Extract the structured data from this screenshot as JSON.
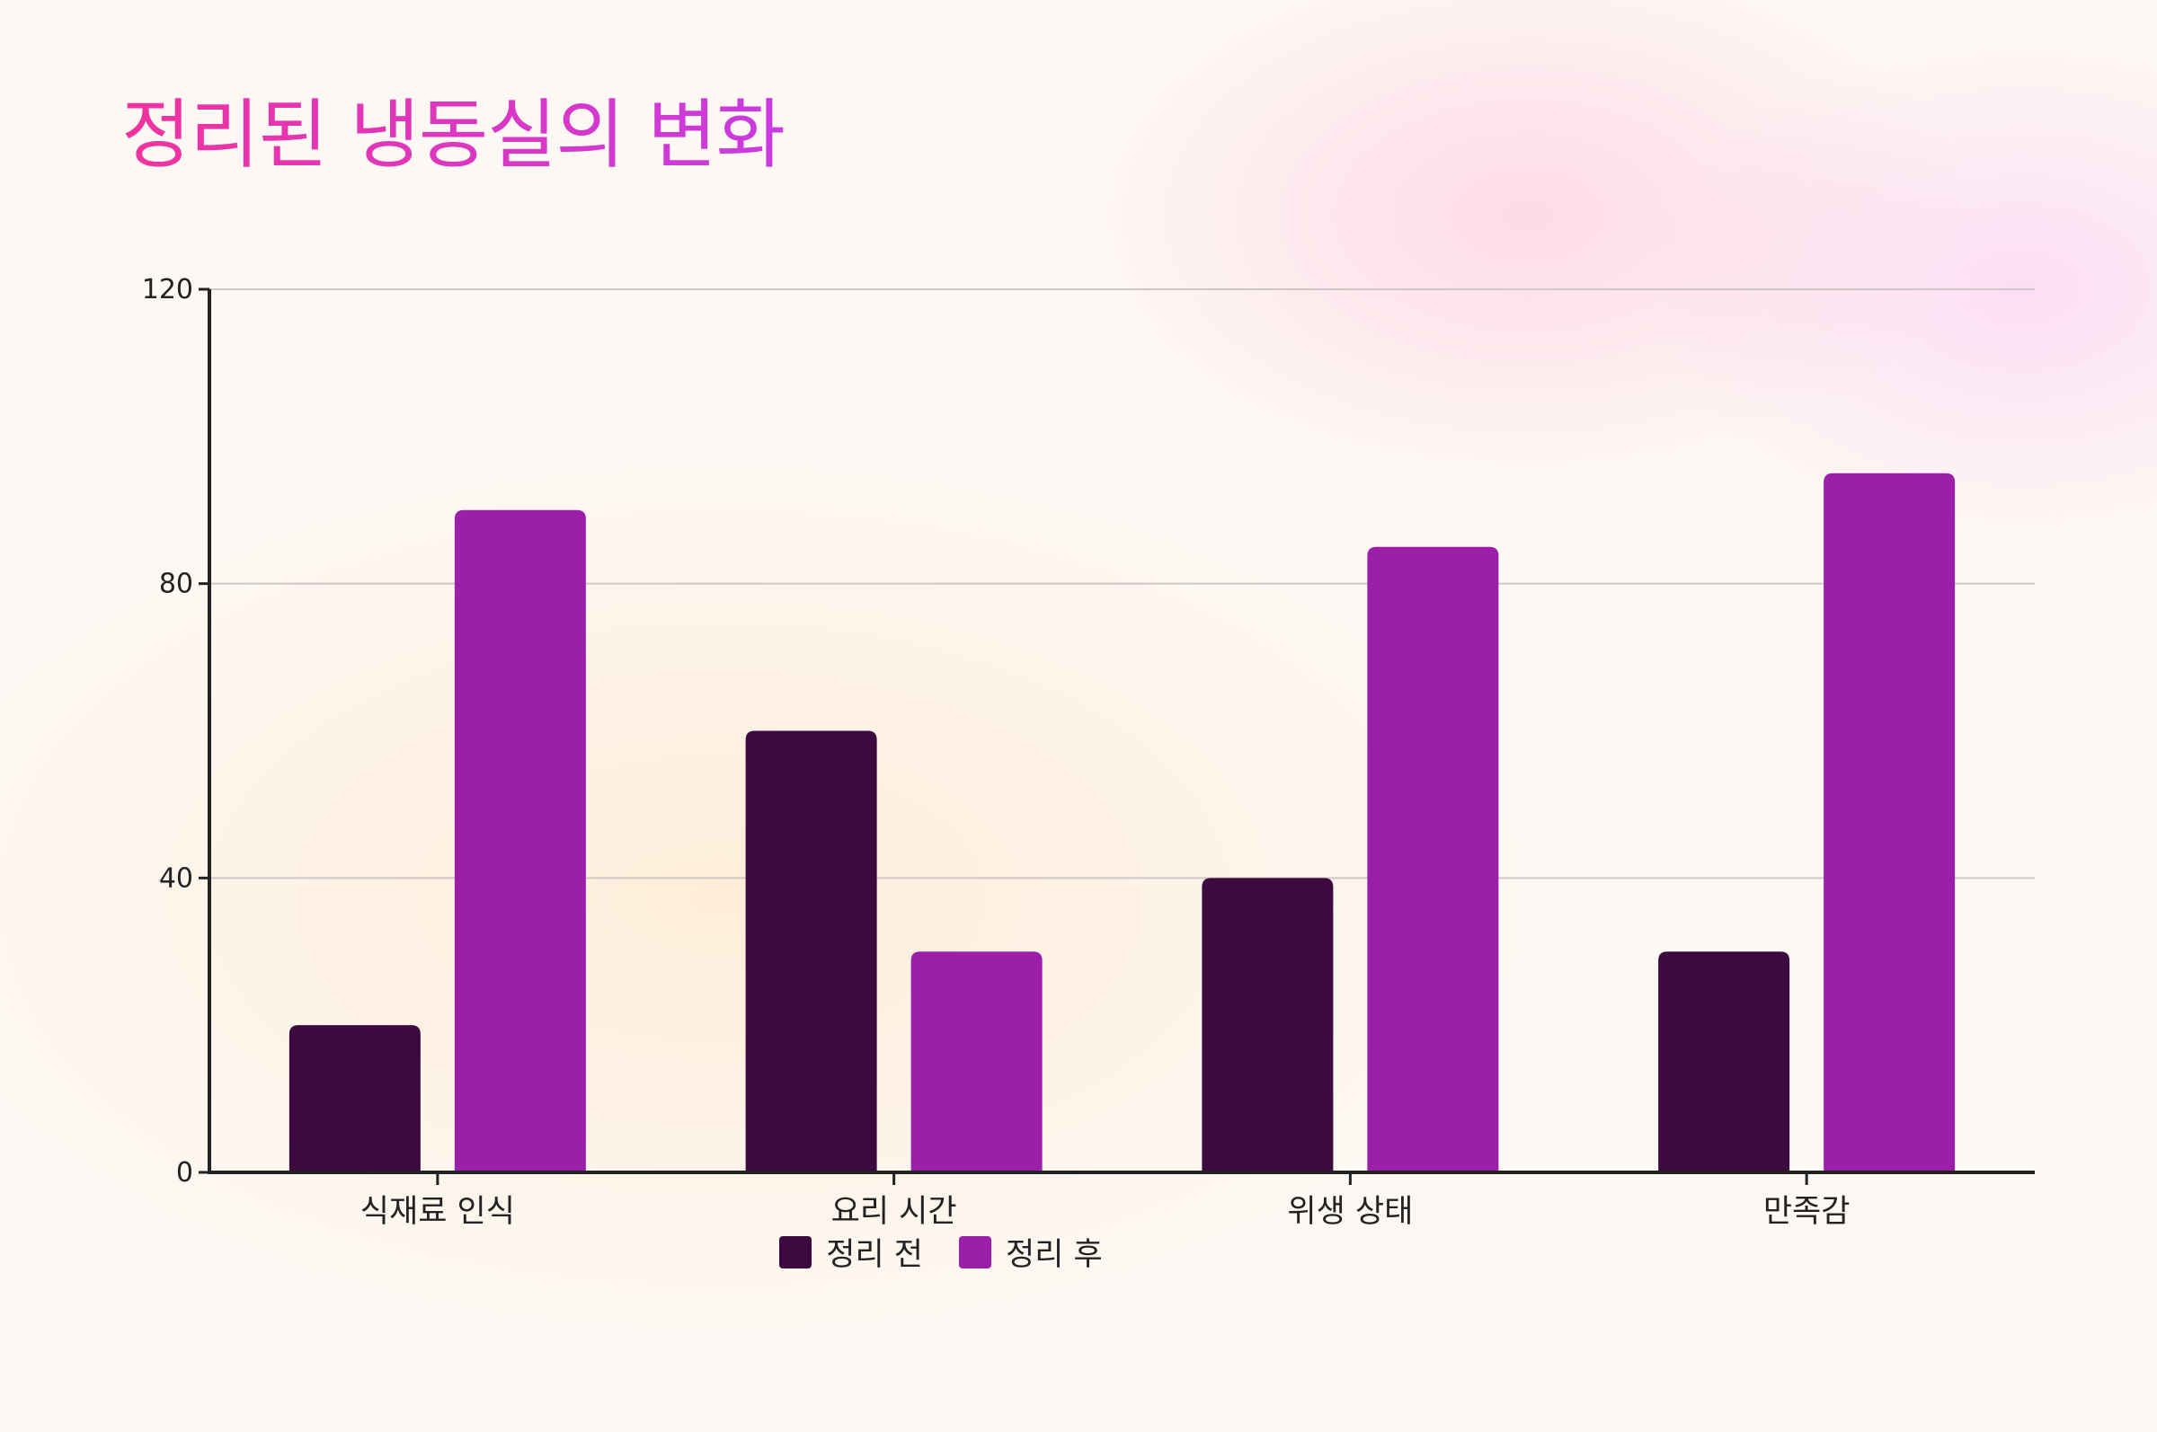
{
  "title": "정리된 냉동실의 변화",
  "chart_data": {
    "type": "bar",
    "categories": [
      "식재료 인식",
      "요리 시간",
      "위생 상태",
      "만족감"
    ],
    "series": [
      {
        "name": "정리 전",
        "values": [
          20,
          60,
          40,
          30
        ],
        "color": "#3d0a3f"
      },
      {
        "name": "정리 후",
        "values": [
          90,
          30,
          85,
          95
        ],
        "color": "#9b1fa8"
      }
    ],
    "ylim": [
      0,
      120
    ],
    "yticks": [
      0,
      40,
      80,
      120
    ],
    "grid": true,
    "legend_position": "bottom-center",
    "title_color": "#f0339f"
  }
}
